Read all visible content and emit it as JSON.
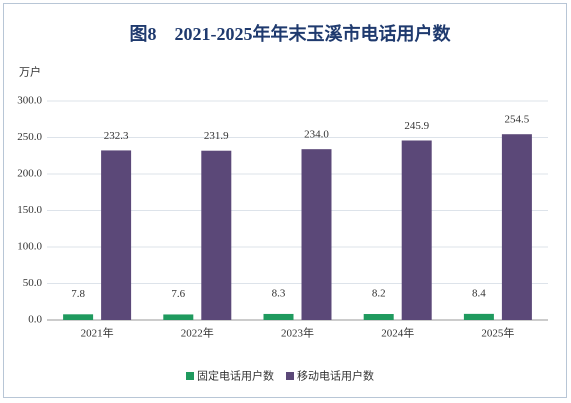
{
  "chart_data": {
    "type": "bar",
    "title": "图8　2021-2025年年末玉溪市电话用户数",
    "y_label": "万户",
    "categories": [
      "2021年",
      "2022年",
      "2023年",
      "2024年",
      "2025年"
    ],
    "series": [
      {
        "name": "固定电话用户数",
        "color": "#1f9a5e",
        "values": [
          7.8,
          7.6,
          8.3,
          8.2,
          8.4
        ],
        "value_labels": [
          "7.8",
          "7.6",
          "8.3",
          "8.2",
          "8.4"
        ]
      },
      {
        "name": "移动电话用户数",
        "color": "#5b4878",
        "values": [
          232.3,
          231.9,
          234.0,
          245.9,
          254.5
        ],
        "value_labels": [
          "232.3",
          "231.9",
          "234.0",
          "245.9",
          "254.5"
        ]
      }
    ],
    "ylim": [
      0,
      300
    ],
    "yticks": [
      {
        "value": 0,
        "label": "0.0"
      },
      {
        "value": 50,
        "label": "50.0"
      },
      {
        "value": 100,
        "label": "100.0"
      },
      {
        "value": 150,
        "label": "150.0"
      },
      {
        "value": 200,
        "label": "200.0"
      },
      {
        "value": 250,
        "label": "250.0"
      },
      {
        "value": 300,
        "label": "300.0"
      }
    ],
    "grid": true,
    "legend": "bottom"
  }
}
